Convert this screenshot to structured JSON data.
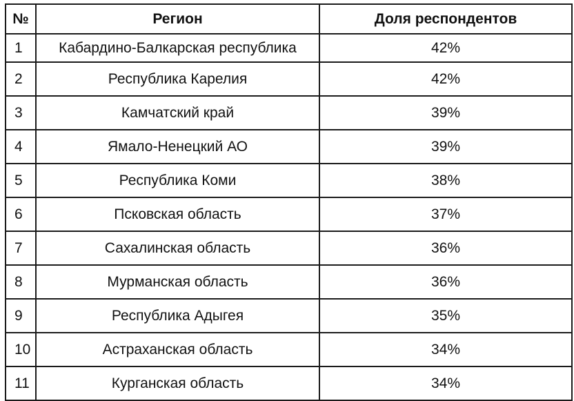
{
  "table": {
    "headers": [
      "№",
      "Регион",
      "Доля респондентов"
    ],
    "rows": [
      {
        "num": "1",
        "region": "Кабардино-Балкарская республика",
        "share": "42%"
      },
      {
        "num": "2",
        "region": "Республика Карелия",
        "share": "42%"
      },
      {
        "num": "3",
        "region": "Камчатский край",
        "share": "39%"
      },
      {
        "num": "4",
        "region": "Ямало-Ненецкий АО",
        "share": "39%"
      },
      {
        "num": "5",
        "region": "Республика Коми",
        "share": "38%"
      },
      {
        "num": "6",
        "region": "Псковская область",
        "share": "37%"
      },
      {
        "num": "7",
        "region": "Сахалинская область",
        "share": "36%"
      },
      {
        "num": "8",
        "region": "Мурманская область",
        "share": "36%"
      },
      {
        "num": "9",
        "region": "Республика Адыгея",
        "share": "35%"
      },
      {
        "num": "10",
        "region": "Астраханская область",
        "share": "34%"
      },
      {
        "num": "11",
        "region": "Курганская область",
        "share": "34%"
      }
    ]
  }
}
